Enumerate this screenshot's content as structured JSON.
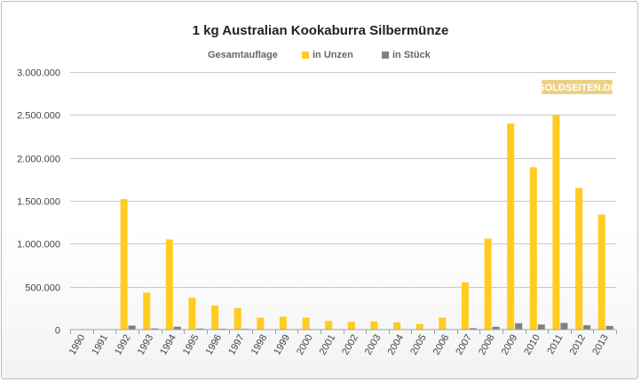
{
  "chart_data": {
    "type": "bar",
    "title": "1 kg Australian Kookaburra Silbermünze",
    "legend_title": "Gesamtauflage",
    "legend_placement": "top",
    "categories": [
      "1990",
      "1991",
      "1992",
      "1993",
      "1994",
      "1995",
      "1996",
      "1997",
      "1998",
      "1999",
      "2000",
      "2001",
      "2002",
      "2003",
      "2004",
      "2005",
      "2006",
      "2007",
      "2008",
      "2009",
      "2010",
      "2011",
      "2012",
      "2013"
    ],
    "series": [
      {
        "name": "in Unzen",
        "color": "#FFCC1F",
        "values": [
          0,
          0,
          1520000,
          430000,
          1050000,
          370000,
          280000,
          250000,
          140000,
          150000,
          140000,
          100000,
          90000,
          95000,
          85000,
          65000,
          140000,
          550000,
          1060000,
          2400000,
          1890000,
          2500000,
          1650000,
          1340000
        ]
      },
      {
        "name": "in Stück",
        "color": "#808080",
        "values": [
          0,
          0,
          47000,
          13000,
          33000,
          12000,
          9000,
          8000,
          4500,
          4800,
          4500,
          3200,
          2800,
          3000,
          2700,
          2000,
          4500,
          17000,
          33000,
          75000,
          59000,
          78000,
          51000,
          42000
        ]
      }
    ],
    "y_ticks": [
      "0",
      "500.000",
      "1.000.000",
      "1.500.000",
      "2.000.000",
      "2.500.000",
      "3.000.000"
    ],
    "ylim": [
      0,
      3000000
    ],
    "grid": true,
    "xlabel": "",
    "ylabel": ""
  },
  "watermark": {
    "text": "GOLDSEITEN.DE",
    "color": "#e6c15a"
  }
}
